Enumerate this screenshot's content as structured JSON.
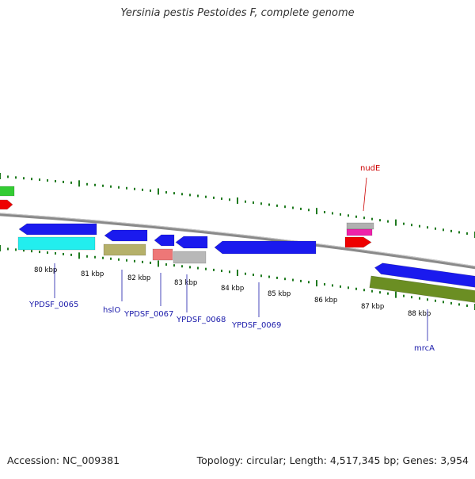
{
  "title": "Yersinia pestis Pestoides F, complete genome",
  "footer": {
    "accession": "Accession: NC_009381",
    "summary": "Topology: circular; Length: 4,517,345 bp; Genes: 3,954"
  },
  "colors": {
    "backbone": "#8a8a8a",
    "tick": "#1f7a1f",
    "tick_label": "#000000",
    "gene_label": "#1a1aaa",
    "highlight_label": "#cc0000"
  },
  "ticks": [
    "80 kbp",
    "81 kbp",
    "82 kbp",
    "83 kbp",
    "84 kbp",
    "85 kbp",
    "86 kbp",
    "87 kbp",
    "88 kbp"
  ],
  "gene_labels": [
    {
      "text": "YPDSF_0065",
      "color": "blue"
    },
    {
      "text": "hslO",
      "color": "blue"
    },
    {
      "text": "YPDSF_0067",
      "color": "blue"
    },
    {
      "text": "YPDSF_0068",
      "color": "blue"
    },
    {
      "text": "YPDSF_0069",
      "color": "blue"
    },
    {
      "text": "mrcA",
      "color": "blue"
    },
    {
      "text": "nudE",
      "color": "red"
    }
  ],
  "features": [
    {
      "name": "forward-cds-left-green",
      "color": "#33cc33",
      "strand": "+"
    },
    {
      "name": "forward-cds-left-red",
      "color": "#ee0000",
      "strand": "+"
    },
    {
      "name": "forward-cds-nudE-gray",
      "color": "#b0b0b0",
      "strand": "+"
    },
    {
      "name": "forward-cds-nudE-pink",
      "color": "#ee22aa",
      "strand": "+"
    },
    {
      "name": "forward-cds-nudE-red",
      "color": "#ee0000",
      "strand": "+"
    },
    {
      "name": "reverse-cds-1",
      "color": "#1a1aee",
      "strand": "-"
    },
    {
      "name": "reverse-cds-1-cyan",
      "color": "#22eeee",
      "strand": "-"
    },
    {
      "name": "reverse-cds-hslO",
      "color": "#1a1aee",
      "strand": "-"
    },
    {
      "name": "reverse-cds-hslO-olive",
      "color": "#b5b06a",
      "strand": "-"
    },
    {
      "name": "reverse-cds-0067",
      "color": "#1a1aee",
      "strand": "-"
    },
    {
      "name": "reverse-cds-0067-salmon",
      "color": "#ee7777",
      "strand": "-"
    },
    {
      "name": "reverse-cds-0068",
      "color": "#1a1aee",
      "strand": "-"
    },
    {
      "name": "reverse-cds-0068-gray",
      "color": "#b8b8b8",
      "strand": "-"
    },
    {
      "name": "reverse-cds-0069",
      "color": "#1a1aee",
      "strand": "-"
    },
    {
      "name": "reverse-cds-mrcA",
      "color": "#1a1aee",
      "strand": "-"
    },
    {
      "name": "reverse-cds-mrcA-olive",
      "color": "#6b8e23",
      "strand": "-"
    }
  ]
}
